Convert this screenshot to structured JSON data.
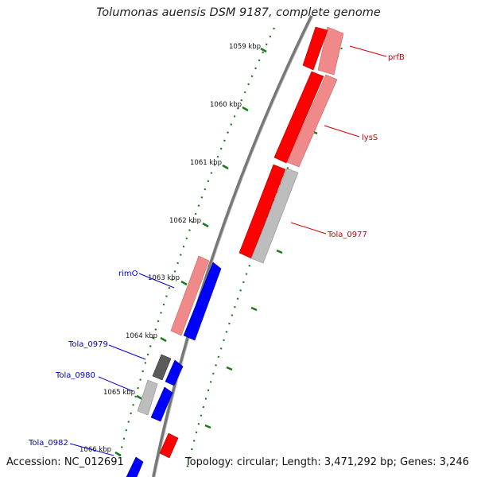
{
  "title": "Tolumonas auensis DSM 9187, complete genome",
  "footer": {
    "accession": "Accession: NC_012691",
    "summary": "Topology: circular; Length: 3,471,292 bp; Genes: 3,246"
  },
  "colors": {
    "backbone": "#777777",
    "tick": "#1a7a1a",
    "forward_label": "#cc0000",
    "reverse_label": "#0000cc",
    "red": "#ff0000",
    "pink": "#f08a8a",
    "grey": "#bdbdbd",
    "darkgrey": "#5a5a5a",
    "blue": "#0000ff"
  },
  "ticks": [
    "1059 kbp",
    "1060 kbp",
    "1061 kbp",
    "1062 kbp",
    "1063 kbp",
    "1064 kbp",
    "1065 kbp",
    "1066 kbp"
  ],
  "gene_labels": {
    "prfB": "prfB",
    "lysS": "lysS",
    "tola_0977": "Tola_0977",
    "rimO": "rimO",
    "tola_0979": "Tola_0979",
    "tola_0980": "Tola_0980",
    "tola_0982": "Tola_0982"
  }
}
